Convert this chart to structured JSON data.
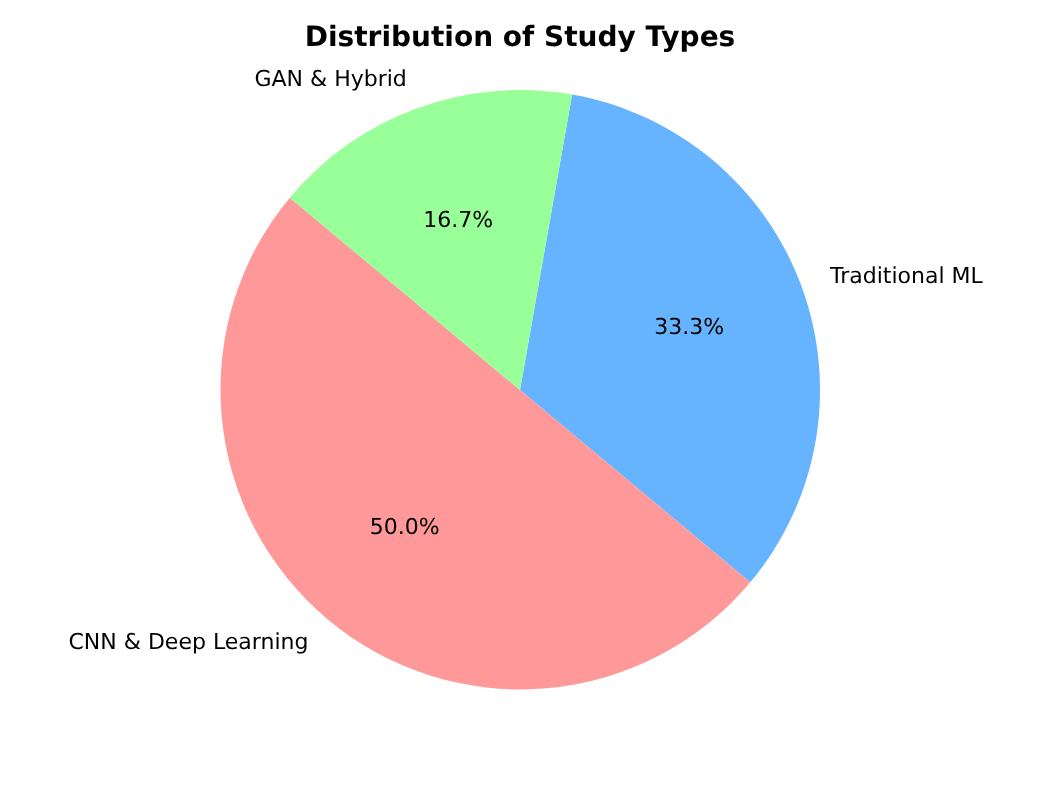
{
  "chart_data": {
    "type": "pie",
    "title": "Distribution of Study Types",
    "categories": [
      "Traditional ML",
      "CNN & Deep Learning",
      "GAN & Hybrid"
    ],
    "values": [
      33.3,
      50.0,
      16.7
    ],
    "colors": [
      "#66b3ff",
      "#ff9999",
      "#99ff99"
    ],
    "value_labels": [
      "33.3%",
      "50.0%",
      "16.7%"
    ],
    "legend": false
  }
}
